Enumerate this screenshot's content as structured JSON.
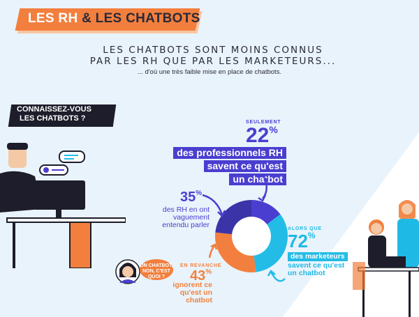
{
  "title": {
    "part1": "LES RH",
    "part2": " & LES CHATBOTS"
  },
  "headline": {
    "line1": "LES CHATBOTS SONT MOINS CONNUS",
    "line2": "PAR LES RH QUE PAR LES MARKETEURS..."
  },
  "subheadline": "... d'où une très faible mise en place de chatbots.",
  "question": {
    "line1": "CONNAISSEZ-VOUS",
    "line2": "LES CHATBOTS ?"
  },
  "stat_22": {
    "prefix": "SEULEMENT",
    "number": "22",
    "pct": "%",
    "line1": "des professionnels RH",
    "line2": "savent ce qu'est",
    "line3": "un chatbot"
  },
  "stat_35": {
    "number": "35",
    "pct": "%",
    "line1": "des RH en ont",
    "line2": "vaguement",
    "line3": "entendu parler"
  },
  "stat_43": {
    "prefix": "EN REVANCHE",
    "number": "43",
    "pct": "%",
    "line1": "ignorent ce",
    "line2": "qu'est un chatbot"
  },
  "stat_72": {
    "prefix": "ALORS QUE",
    "number": "72",
    "pct": "%",
    "line1": "des marketeurs",
    "line2": "savent ce qu'est",
    "line3": "un chatbot"
  },
  "speech": {
    "line1": "UN CHATBOT,",
    "line2": "NON, C'EST QUOI ?"
  },
  "donut": {
    "hr_knows": 22,
    "hr_vague": 35,
    "hr_ignore": 43,
    "marketers_know": 72
  },
  "colors": {
    "orange": "#f27f3d",
    "purple": "#4a3ed0",
    "cyan": "#23bce6",
    "dark": "#1d1d2b",
    "light_blue": "#e9f3fb"
  }
}
